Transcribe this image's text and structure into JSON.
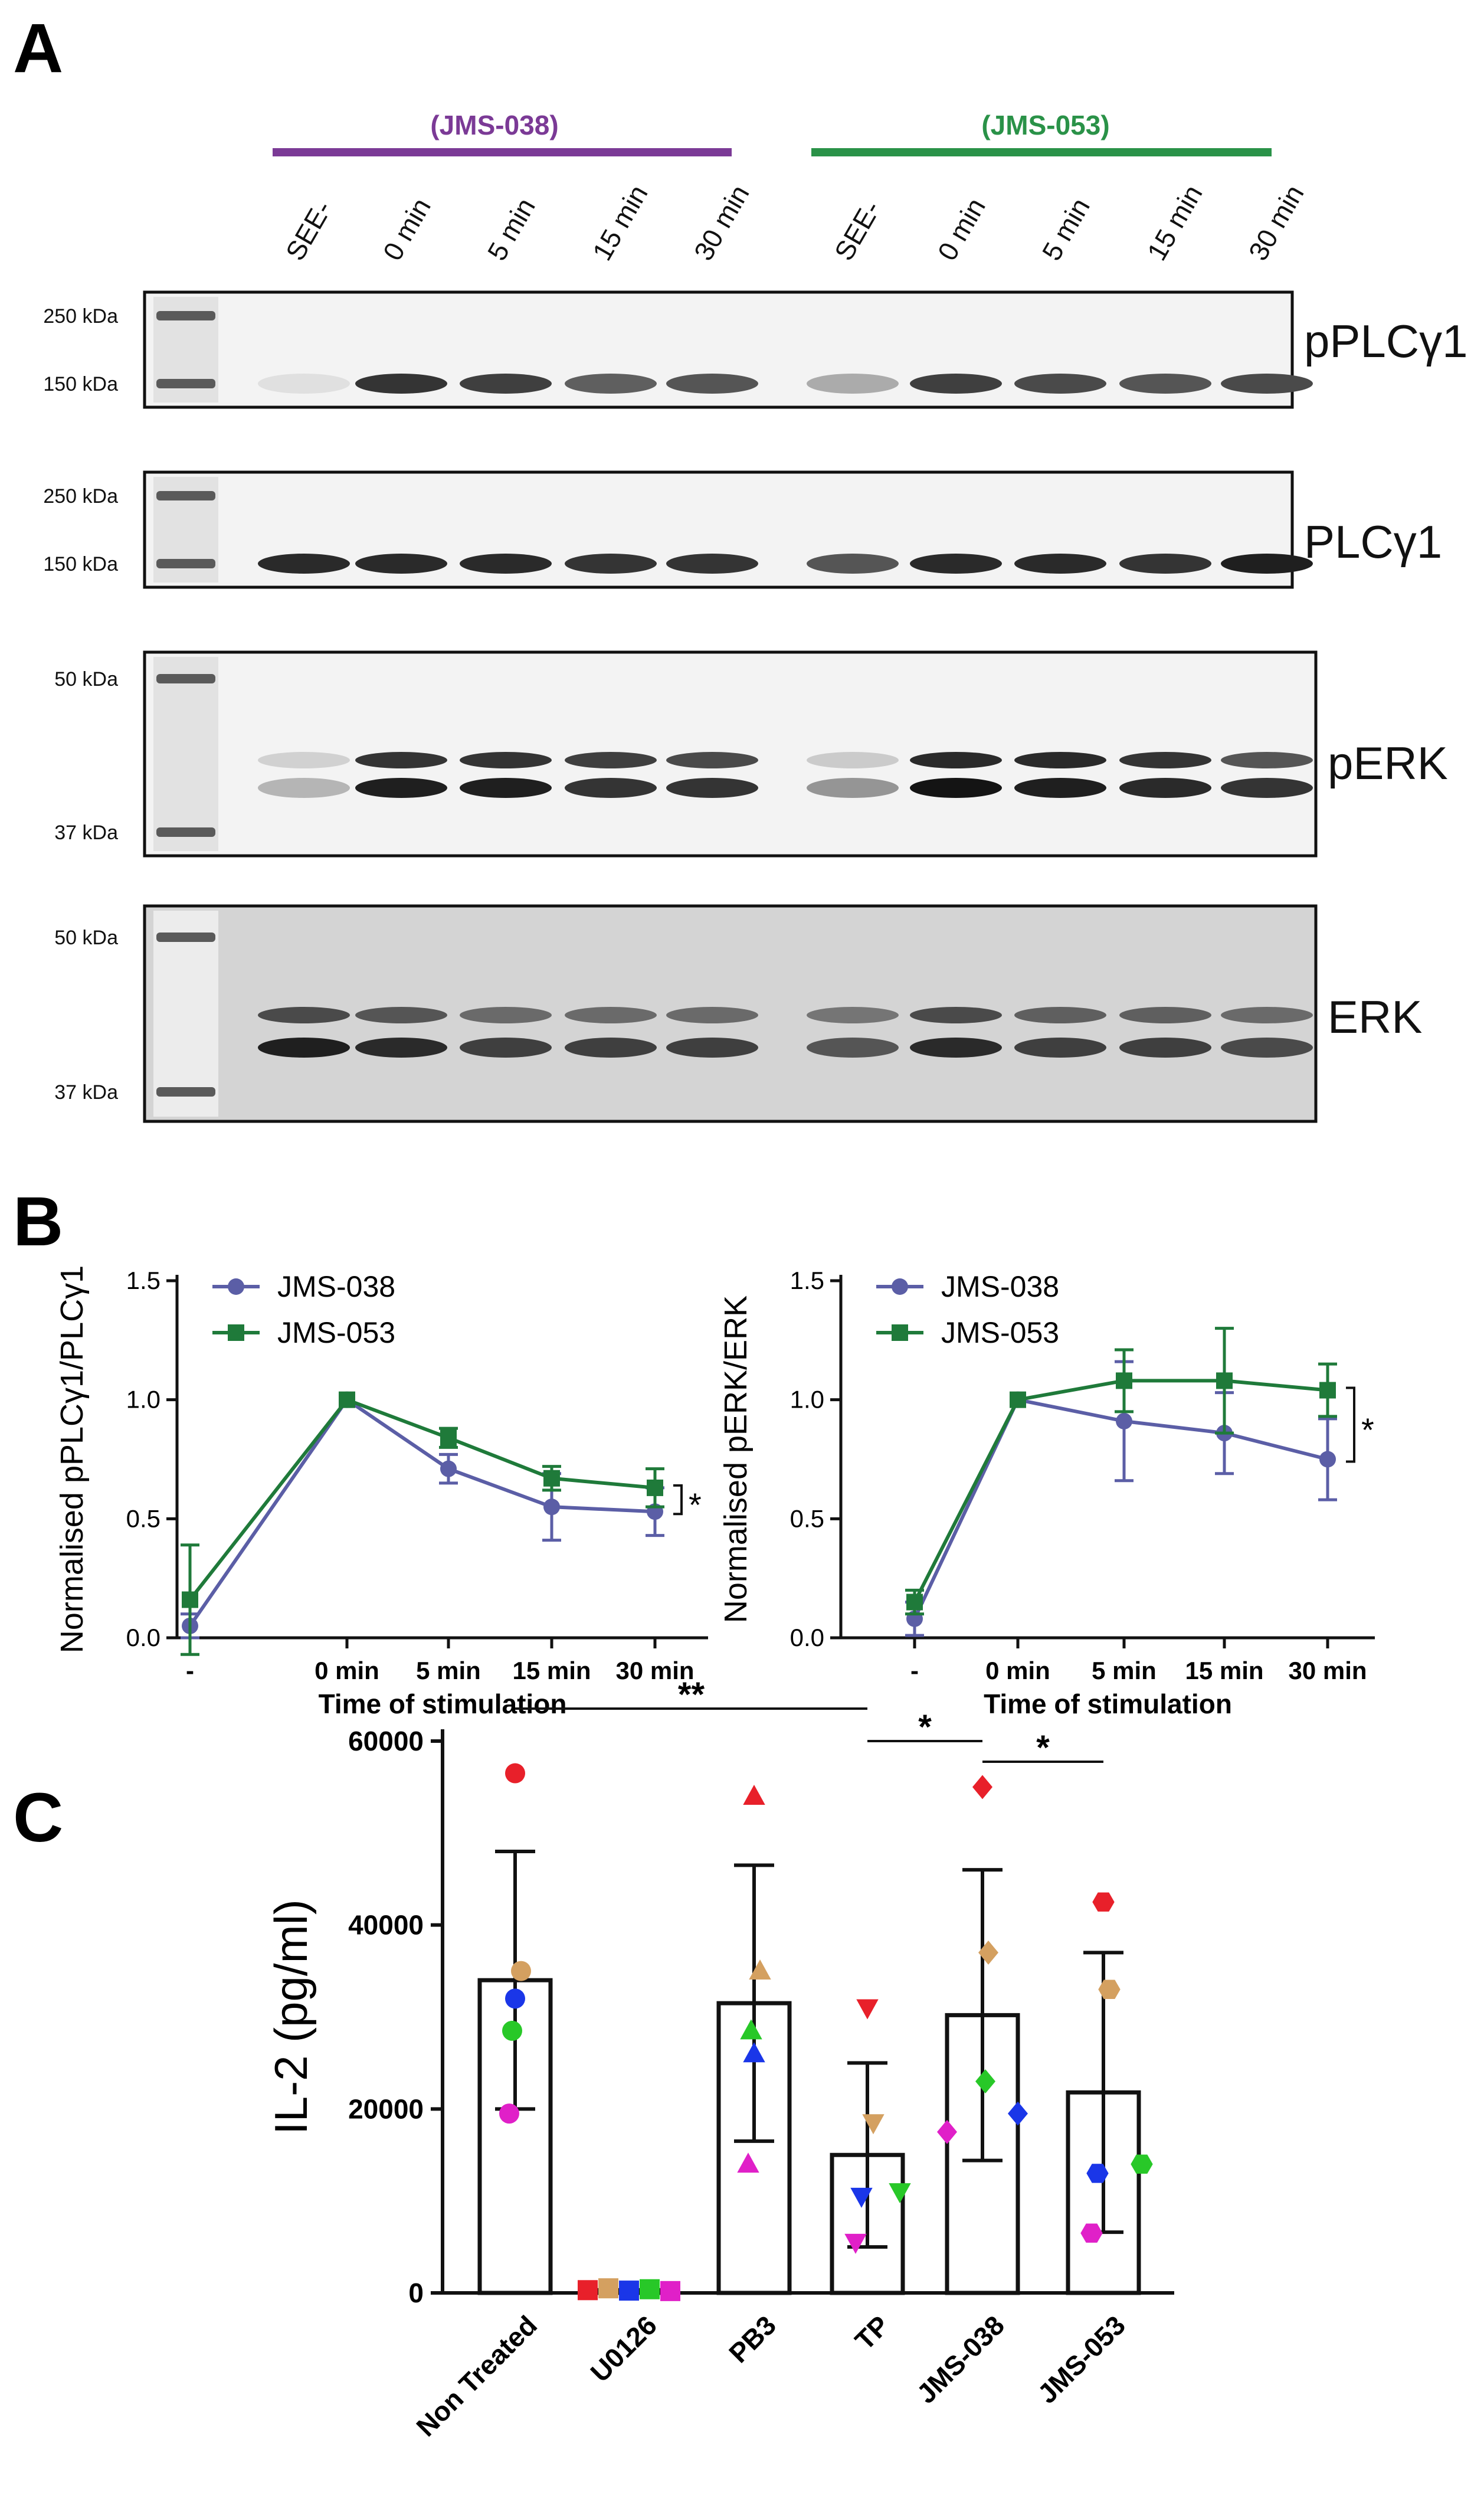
{
  "panel_a": {
    "letter": "A",
    "groups": [
      {
        "label": "(JMS-038)",
        "color": "#7b3a96"
      },
      {
        "label": "(JMS-053)",
        "color": "#2a9248"
      }
    ],
    "lanes": [
      "SEE-",
      "0 min",
      "5 min",
      "15 min",
      "30 min",
      "SEE-",
      "0 min",
      "5 min",
      "15 min",
      "30 min"
    ],
    "blots": [
      {
        "name": "pPLCγ1",
        "markers": [
          "250 kDa",
          "150 kDa"
        ],
        "upper_band": [
          0.05,
          0.85,
          0.8,
          0.65,
          0.7,
          0.3,
          0.8,
          0.75,
          0.7,
          0.75
        ],
        "lower_band": null
      },
      {
        "name": "PLCγ1",
        "markers": [
          "250 kDa",
          "150 kDa"
        ],
        "upper_band": [
          0.9,
          0.9,
          0.9,
          0.85,
          0.85,
          0.7,
          0.9,
          0.9,
          0.85,
          0.95
        ],
        "lower_band": null
      },
      {
        "name": "pERK",
        "markers": [
          "50 kDa",
          "37 kDa"
        ],
        "upper_band": [
          0.12,
          0.85,
          0.85,
          0.8,
          0.75,
          0.15,
          0.9,
          0.9,
          0.85,
          0.7
        ],
        "lower_band": [
          0.25,
          0.95,
          0.95,
          0.85,
          0.85,
          0.4,
          1.0,
          0.95,
          0.9,
          0.85
        ]
      },
      {
        "name": "ERK",
        "markers": [
          "50 kDa",
          "37 kDa"
        ],
        "upper_band": [
          0.75,
          0.7,
          0.6,
          0.6,
          0.6,
          0.55,
          0.75,
          0.65,
          0.65,
          0.6
        ],
        "lower_band": [
          0.95,
          0.9,
          0.8,
          0.8,
          0.8,
          0.7,
          0.9,
          0.8,
          0.8,
          0.75
        ]
      }
    ]
  },
  "panel_b": {
    "letter": "B"
  },
  "panel_c": {
    "letter": "C"
  },
  "chart_data": [
    {
      "type": "line",
      "panel": "B-left",
      "categories": [
        "-",
        "0 min",
        "5 min",
        "15 min",
        "30 min"
      ],
      "xlabel": "Time of stimulation",
      "ylabel": "Normalised pPLCγ1/PLCγ1",
      "ylim": [
        0,
        1.5
      ],
      "yticks": [
        "0.0",
        "0.5",
        "1.0",
        "1.5"
      ],
      "legend": "top-left",
      "series": [
        {
          "name": "JMS-038",
          "marker": "circle",
          "color": "#5b5ea6",
          "values": [
            0.05,
            1.0,
            0.71,
            0.55,
            0.53
          ],
          "err": [
            0.05,
            0,
            0.06,
            0.14,
            0.1
          ]
        },
        {
          "name": "JMS-053",
          "marker": "square",
          "color": "#1f7a3a",
          "values": [
            0.16,
            1.0,
            0.84,
            0.67,
            0.63
          ],
          "err": [
            0.23,
            0,
            0.04,
            0.05,
            0.08
          ]
        }
      ],
      "annotation": "*"
    },
    {
      "type": "line",
      "panel": "B-right",
      "categories": [
        "-",
        "0 min",
        "5 min",
        "15 min",
        "30 min"
      ],
      "xlabel": "Time of stimulation",
      "ylabel": "Normalised pERK/ERK",
      "ylim": [
        0,
        1.5
      ],
      "yticks": [
        "0.0",
        "0.5",
        "1.0",
        "1.5"
      ],
      "legend": "top-left",
      "series": [
        {
          "name": "JMS-038",
          "marker": "circle",
          "color": "#5b5ea6",
          "values": [
            0.08,
            1.0,
            0.91,
            0.86,
            0.75
          ],
          "err": [
            0.07,
            0,
            0.25,
            0.17,
            0.17
          ]
        },
        {
          "name": "JMS-053",
          "marker": "square",
          "color": "#1f7a3a",
          "values": [
            0.15,
            1.0,
            1.08,
            1.08,
            1.04
          ],
          "err": [
            0.05,
            0,
            0.13,
            0.22,
            0.11
          ]
        }
      ],
      "annotation": "*"
    },
    {
      "type": "bar",
      "panel": "C",
      "categories": [
        "Non Treated",
        "U0126",
        "PB3",
        "TP",
        "JMS-038",
        "JMS-053"
      ],
      "values": [
        34000,
        300,
        31500,
        15000,
        30200,
        21800
      ],
      "err": [
        14000,
        0,
        15000,
        10000,
        15800,
        15200
      ],
      "ylabel": "IL-2 (pg/ml)",
      "ylim": [
        0,
        60000
      ],
      "yticks": [
        "0",
        "20000",
        "40000",
        "60000"
      ],
      "markers": [
        "circle",
        "square",
        "triangle-up",
        "triangle-down",
        "diamond",
        "hexagon"
      ],
      "replicate_colors": [
        "#e8202a",
        "#d4a060",
        "#1a36e8",
        "#28c828",
        "#e020c8"
      ],
      "replicates": [
        [
          56500,
          35000,
          32000,
          28500,
          19500
        ],
        [
          300,
          500,
          250,
          400,
          200
        ],
        [
          54000,
          35000,
          26000,
          28500,
          14000
        ],
        [
          31000,
          18500,
          10500,
          11000,
          5500
        ],
        [
          55000,
          37000,
          19500,
          23000,
          17500
        ],
        [
          42500,
          33000,
          13000,
          14000,
          6500
        ]
      ],
      "significance": [
        {
          "from": "Non Treated",
          "to": "TP",
          "label": "**"
        },
        {
          "from": "TP",
          "to": "JMS-038",
          "label": "*"
        },
        {
          "from": "JMS-038",
          "to": "JMS-053",
          "label": "*"
        }
      ]
    }
  ]
}
